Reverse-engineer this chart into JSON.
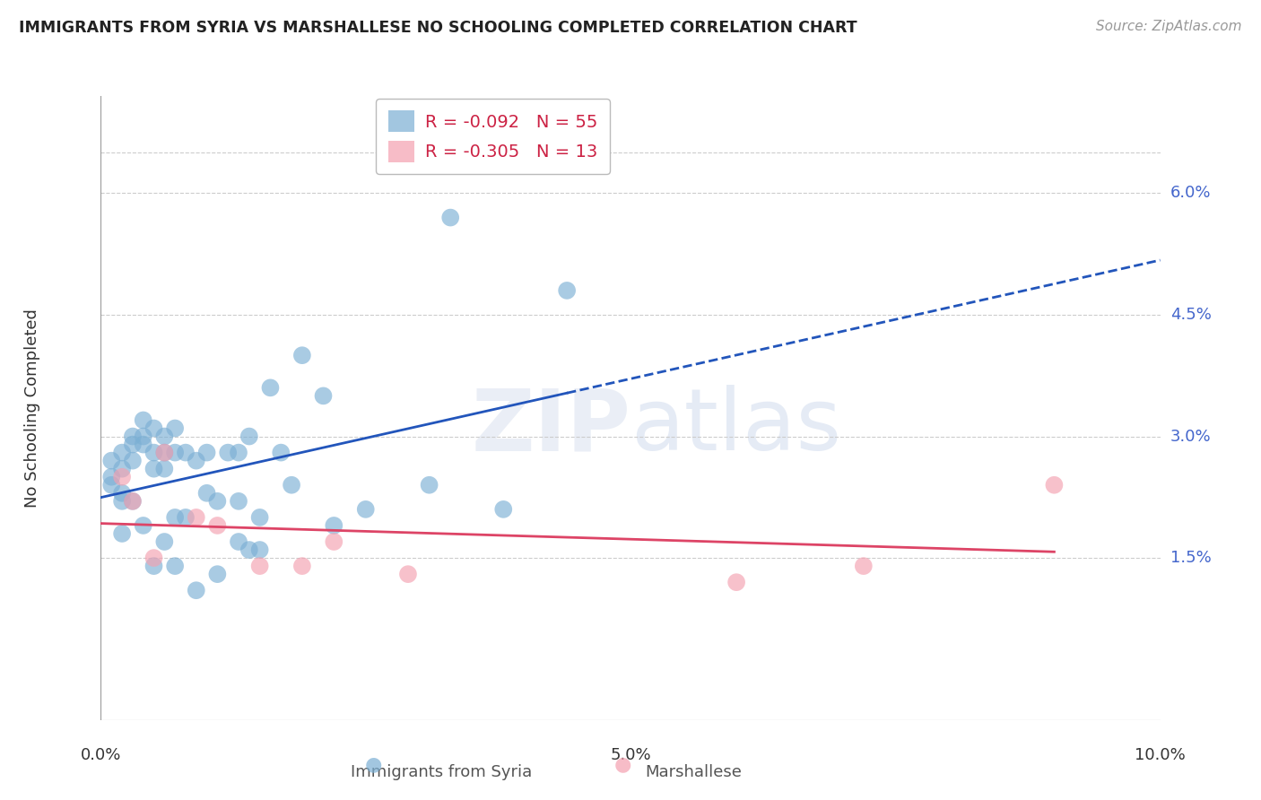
{
  "title": "IMMIGRANTS FROM SYRIA VS MARSHALLESE NO SCHOOLING COMPLETED CORRELATION CHART",
  "source": "Source: ZipAtlas.com",
  "ylabel": "No Schooling Completed",
  "xlim": [
    0.0,
    0.1
  ],
  "ylim": [
    -0.005,
    0.072
  ],
  "ytick_labels": [
    "1.5%",
    "3.0%",
    "4.5%",
    "6.0%"
  ],
  "ytick_values": [
    0.015,
    0.03,
    0.045,
    0.06
  ],
  "xtick_labels": [
    "0.0%",
    "5.0%",
    "10.0%"
  ],
  "xtick_values": [
    0.0,
    0.05,
    0.1
  ],
  "syria_color": "#7bafd4",
  "marshallese_color": "#f4a0b0",
  "trend_syria_color": "#2255bb",
  "trend_marshallese_color": "#dd4466",
  "legend_syria_r": "-0.092",
  "legend_syria_n": "55",
  "legend_marshallese_r": "-0.305",
  "legend_marshallese_n": "13",
  "syria_x": [
    0.001,
    0.001,
    0.001,
    0.002,
    0.002,
    0.002,
    0.002,
    0.002,
    0.003,
    0.003,
    0.003,
    0.003,
    0.004,
    0.004,
    0.004,
    0.004,
    0.005,
    0.005,
    0.005,
    0.005,
    0.006,
    0.006,
    0.006,
    0.006,
    0.007,
    0.007,
    0.007,
    0.007,
    0.008,
    0.008,
    0.009,
    0.009,
    0.01,
    0.01,
    0.011,
    0.011,
    0.012,
    0.013,
    0.013,
    0.013,
    0.014,
    0.014,
    0.015,
    0.015,
    0.016,
    0.017,
    0.018,
    0.019,
    0.021,
    0.022,
    0.025,
    0.031,
    0.033,
    0.038,
    0.044
  ],
  "syria_y": [
    0.027,
    0.025,
    0.024,
    0.028,
    0.026,
    0.023,
    0.022,
    0.018,
    0.03,
    0.029,
    0.027,
    0.022,
    0.032,
    0.03,
    0.029,
    0.019,
    0.031,
    0.028,
    0.026,
    0.014,
    0.03,
    0.028,
    0.026,
    0.017,
    0.031,
    0.028,
    0.02,
    0.014,
    0.028,
    0.02,
    0.027,
    0.011,
    0.028,
    0.023,
    0.022,
    0.013,
    0.028,
    0.028,
    0.022,
    0.017,
    0.03,
    0.016,
    0.02,
    0.016,
    0.036,
    0.028,
    0.024,
    0.04,
    0.035,
    0.019,
    0.021,
    0.024,
    0.057,
    0.021,
    0.048
  ],
  "marshallese_x": [
    0.002,
    0.003,
    0.005,
    0.006,
    0.009,
    0.011,
    0.015,
    0.019,
    0.022,
    0.029,
    0.06,
    0.072,
    0.09
  ],
  "marshallese_y": [
    0.025,
    0.022,
    0.015,
    0.028,
    0.02,
    0.019,
    0.014,
    0.014,
    0.017,
    0.013,
    0.012,
    0.014,
    0.024
  ],
  "background_color": "#ffffff",
  "grid_color": "#cccccc"
}
